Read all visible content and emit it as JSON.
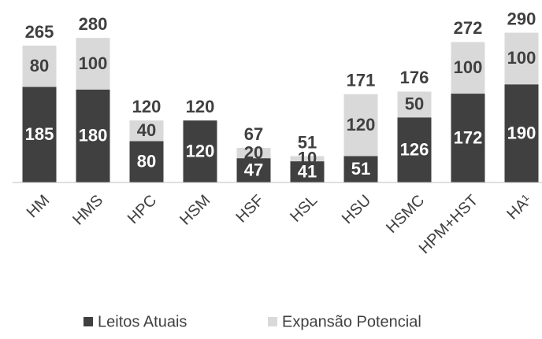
{
  "chart_data": {
    "type": "stacked_bar",
    "categories": [
      "HM",
      "HMS",
      "HPC",
      "HSM",
      "HSF",
      "HSL",
      "HSU",
      "HSMC",
      "HPM+HST",
      "HA¹"
    ],
    "series": [
      {
        "name": "Leitos Atuais",
        "color": "#404040",
        "values": [
          185,
          180,
          80,
          120,
          47,
          41,
          51,
          126,
          172,
          190
        ]
      },
      {
        "name": "Expansão Potencial",
        "color": "#d9d9d9",
        "values": [
          80,
          100,
          40,
          null,
          20,
          10,
          120,
          50,
          100,
          100
        ]
      }
    ],
    "totals": [
      265,
      280,
      120,
      120,
      67,
      51,
      171,
      176,
      272,
      290
    ],
    "ylim": [
      0,
      300
    ]
  }
}
